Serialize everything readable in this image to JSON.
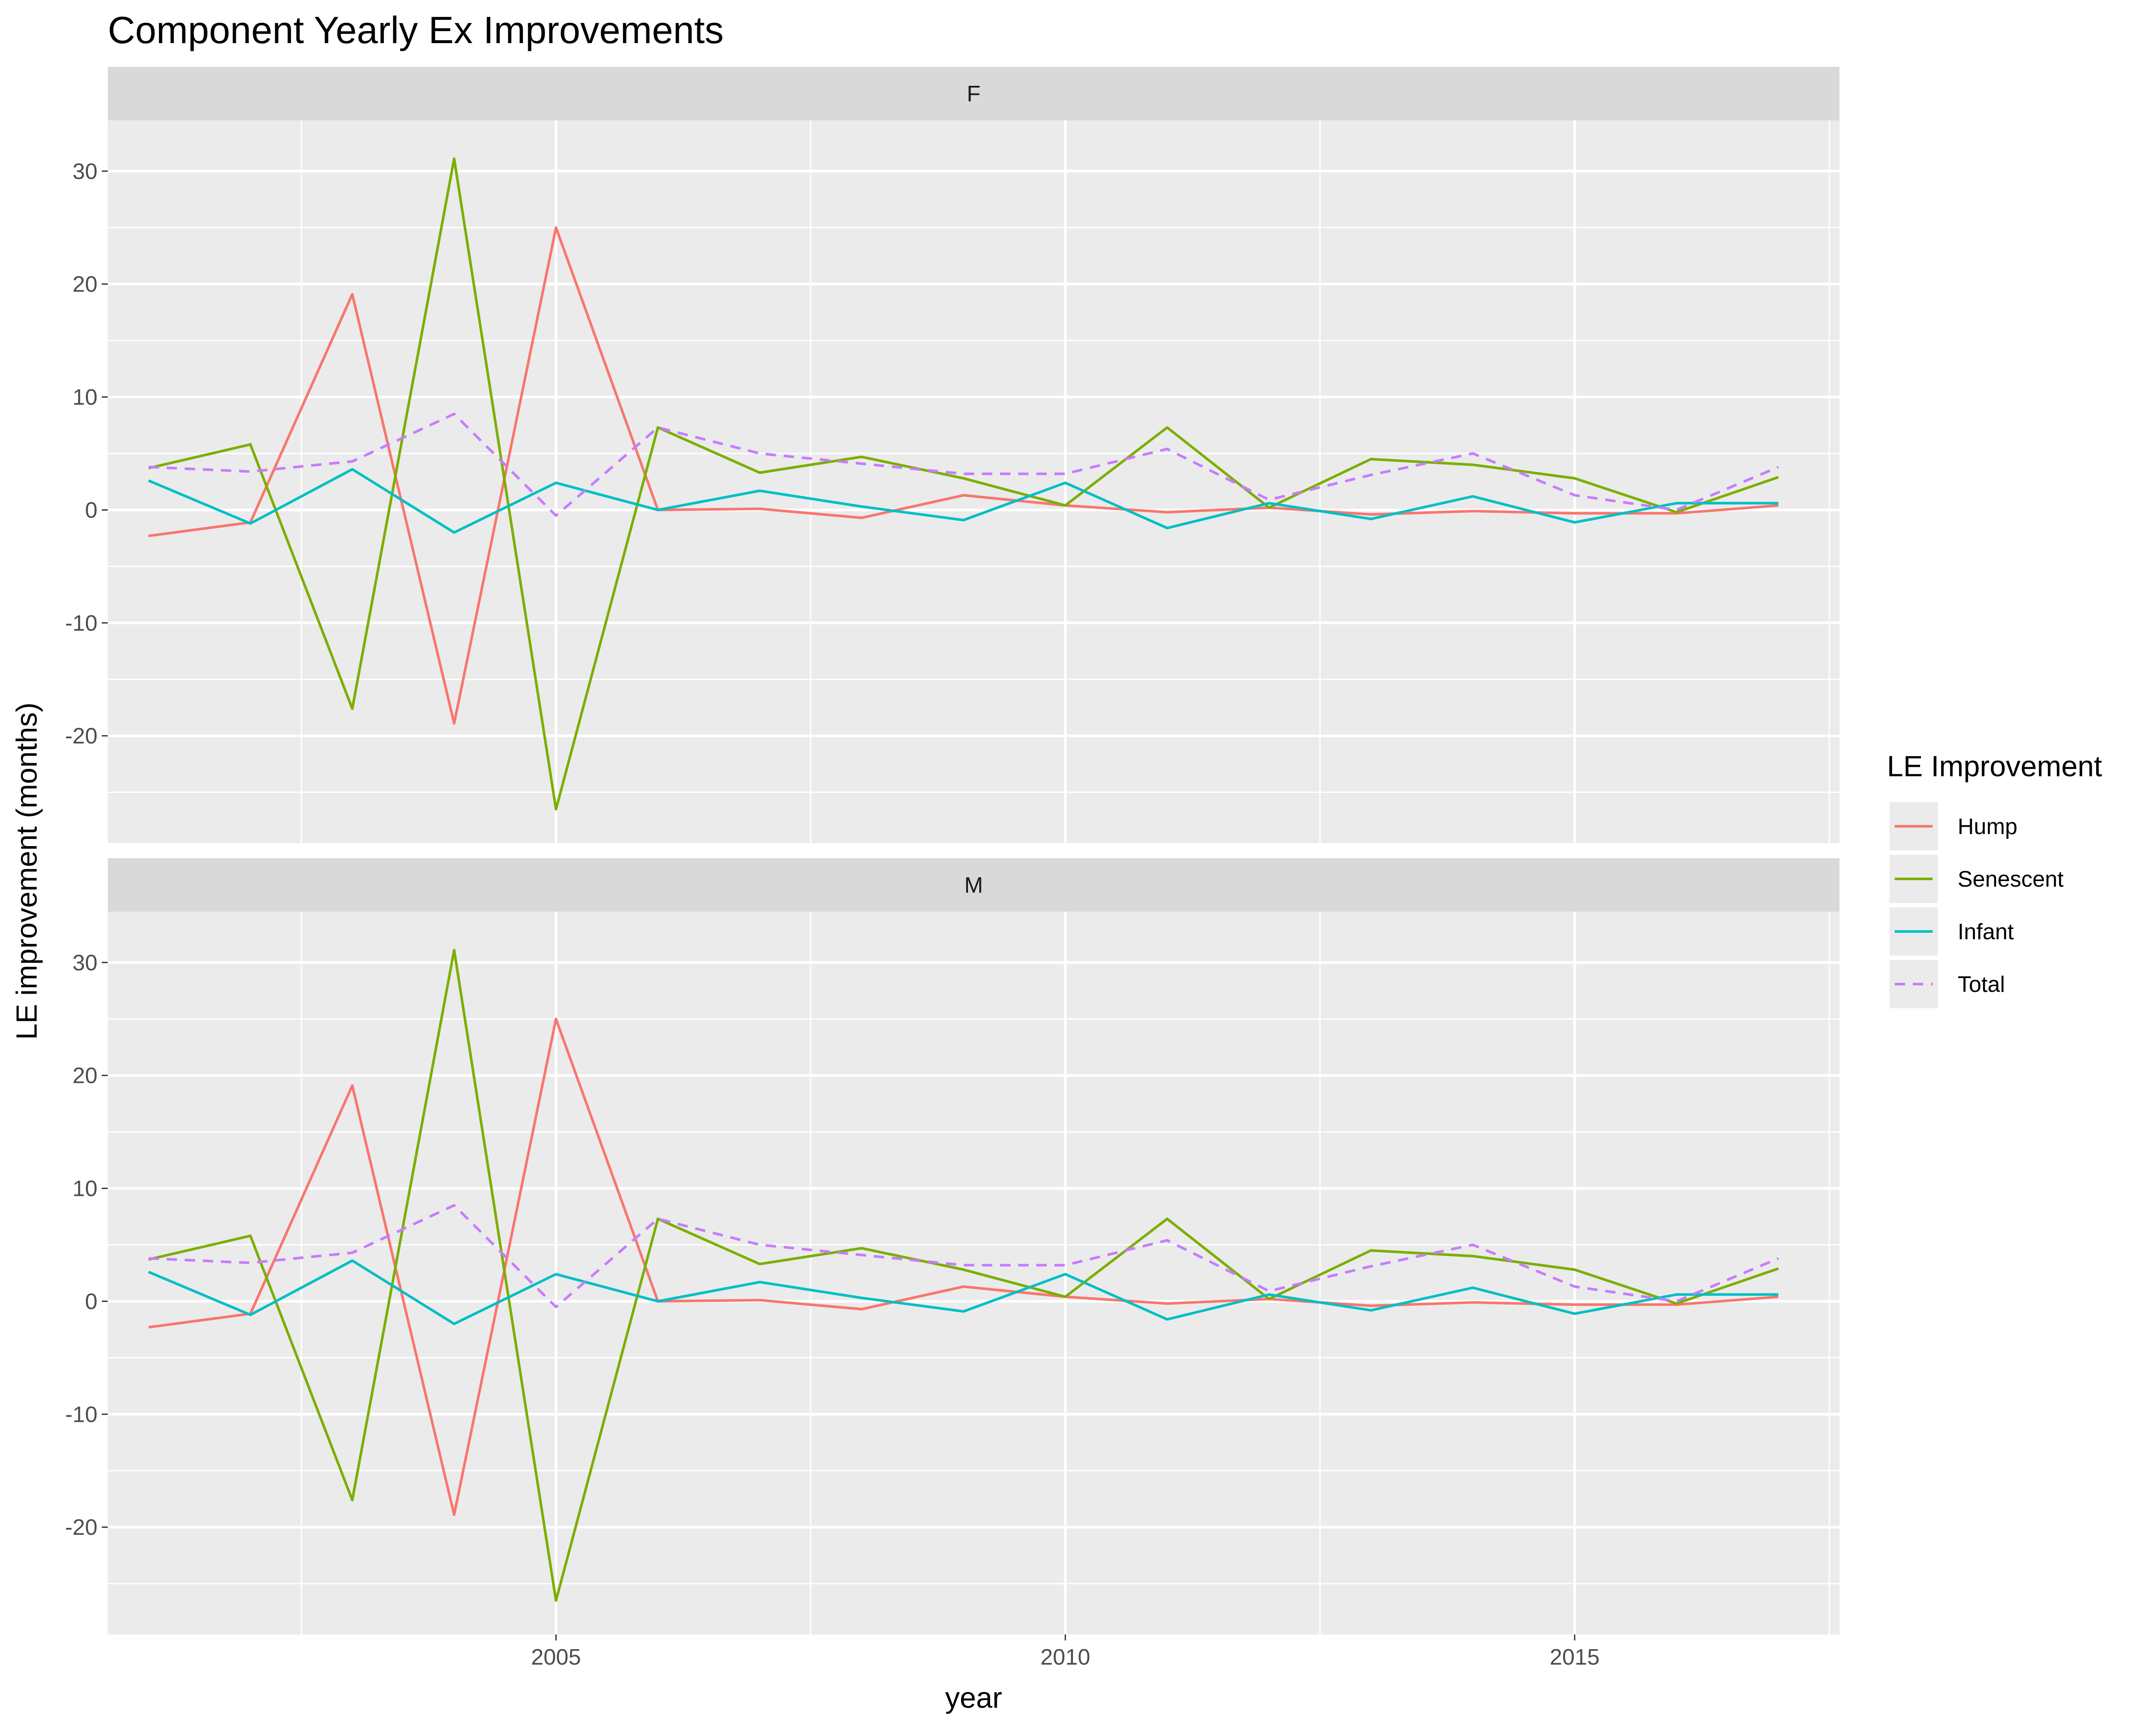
{
  "chart_data": {
    "type": "line",
    "title": "Component Yearly Ex Improvements",
    "xlabel": "year",
    "ylabel": "LE improvement (months)",
    "xlim": [
      2000.6,
      2017.6
    ],
    "ylim": [
      -29.5,
      34.5
    ],
    "x_ticks": [
      2005,
      2010,
      2015
    ],
    "y_ticks": [
      -20,
      -10,
      0,
      10,
      20,
      30
    ],
    "x_tick_labels": [
      "2005",
      "2010",
      "2015"
    ],
    "y_tick_labels": [
      "-20",
      "-10",
      "0",
      "10",
      "20",
      "30"
    ],
    "grid": true,
    "legend": {
      "title": "LE Improvement",
      "placement": "right",
      "entries": [
        "Hump",
        "Senescent",
        "Infant",
        "Total"
      ]
    },
    "x": [
      2001,
      2002,
      2003,
      2004,
      2005,
      2006,
      2007,
      2008,
      2009,
      2010,
      2011,
      2012,
      2013,
      2014,
      2015,
      2016,
      2017
    ],
    "facets": [
      {
        "label": "F",
        "series": [
          {
            "name": "Hump",
            "color": "#F8766D",
            "dash": "solid",
            "values": [
              -2.3,
              -1.1,
              19.1,
              -18.9,
              25.0,
              0.0,
              0.1,
              -0.7,
              1.3,
              0.4,
              -0.2,
              0.2,
              -0.4,
              -0.1,
              -0.3,
              -0.3,
              0.4
            ]
          },
          {
            "name": "Senescent",
            "color": "#7CAE00",
            "dash": "solid",
            "values": [
              3.7,
              5.8,
              -17.6,
              31.1,
              -26.5,
              7.3,
              3.3,
              4.7,
              2.8,
              0.4,
              7.3,
              0.2,
              4.5,
              4.0,
              2.8,
              -0.2,
              2.9
            ]
          },
          {
            "name": "Infant",
            "color": "#00BFC4",
            "dash": "solid",
            "values": [
              2.6,
              -1.2,
              3.6,
              -2.0,
              2.4,
              0.0,
              1.7,
              0.3,
              -0.9,
              2.4,
              -1.6,
              0.6,
              -0.8,
              1.2,
              -1.1,
              0.6,
              0.6
            ]
          },
          {
            "name": "Total",
            "color": "#C77CFF",
            "dash": "dashed",
            "values": [
              3.8,
              3.4,
              4.3,
              8.5,
              -0.5,
              7.3,
              5.0,
              4.1,
              3.2,
              3.2,
              5.4,
              0.9,
              3.1,
              5.0,
              1.3,
              0.0,
              3.8
            ]
          }
        ]
      },
      {
        "label": "M",
        "series": [
          {
            "name": "Hump",
            "color": "#F8766D",
            "dash": "solid",
            "values": [
              -2.3,
              -1.1,
              19.1,
              -18.9,
              25.0,
              0.0,
              0.1,
              -0.7,
              1.3,
              0.4,
              -0.2,
              0.2,
              -0.4,
              -0.1,
              -0.3,
              -0.3,
              0.4
            ]
          },
          {
            "name": "Senescent",
            "color": "#7CAE00",
            "dash": "solid",
            "values": [
              3.7,
              5.8,
              -17.6,
              31.1,
              -26.5,
              7.3,
              3.3,
              4.7,
              2.8,
              0.4,
              7.3,
              0.2,
              4.5,
              4.0,
              2.8,
              -0.2,
              2.9
            ]
          },
          {
            "name": "Infant",
            "color": "#00BFC4",
            "dash": "solid",
            "values": [
              2.6,
              -1.2,
              3.6,
              -2.0,
              2.4,
              0.0,
              1.7,
              0.3,
              -0.9,
              2.4,
              -1.6,
              0.6,
              -0.8,
              1.2,
              -1.1,
              0.6,
              0.6
            ]
          },
          {
            "name": "Total",
            "color": "#C77CFF",
            "dash": "dashed",
            "values": [
              3.8,
              3.4,
              4.3,
              8.5,
              -0.5,
              7.3,
              5.0,
              4.1,
              3.2,
              3.2,
              5.4,
              0.9,
              3.1,
              5.0,
              1.3,
              0.0,
              3.8
            ]
          }
        ]
      }
    ]
  }
}
